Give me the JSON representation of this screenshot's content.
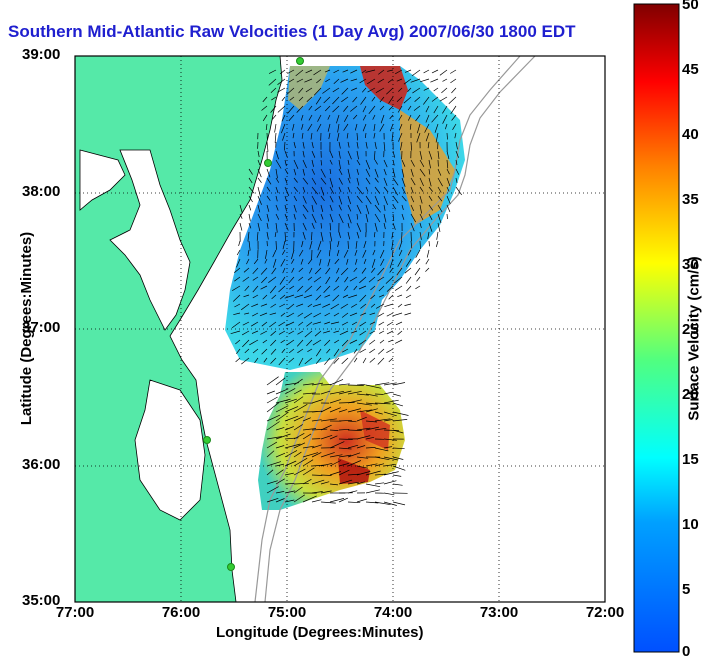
{
  "title": "Southern Mid-Atlantic Raw Velocities (1 Day Avg) 2007/06/30 1800 EDT",
  "axes": {
    "xlabel": "Longitude (Degrees:Minutes)",
    "ylabel": "Latitude (Degrees:Minutes)",
    "xticks": [
      "77:00",
      "76:00",
      "75:00",
      "74:00",
      "73:00",
      "72:00"
    ],
    "yticks": [
      "39:00",
      "38:00",
      "37:00",
      "36:00",
      "35:00"
    ]
  },
  "colorbar": {
    "label": "Surface Velocity (cm/s)",
    "ticks": [
      "50",
      "45",
      "40",
      "35",
      "30",
      "25",
      "20",
      "15",
      "10",
      "5",
      "0"
    ],
    "colors": [
      "#800000",
      "#ff0000",
      "#ff8000",
      "#ffff00",
      "#80ff80",
      "#00ffff",
      "#0080ff",
      "#0000ff"
    ]
  },
  "map_colors": {
    "land": "#55e9a8",
    "coast": "#000000",
    "vector": "#000000",
    "stations": "#33cc33",
    "bathymetry": "#999999"
  },
  "chart_data": {
    "type": "heatmap",
    "title": "Southern Mid-Atlantic Raw Velocities (1 Day Avg) 2007/06/30 1800 EDT",
    "xlabel": "Longitude (Degrees:Minutes)",
    "ylabel": "Latitude (Degrees:Minutes)",
    "xlim": [
      -77,
      -72
    ],
    "ylim": [
      35,
      39
    ],
    "colorbar_range": [
      0,
      50
    ],
    "colorbar_label": "Surface Velocity (cm/s)",
    "grid": true
  }
}
